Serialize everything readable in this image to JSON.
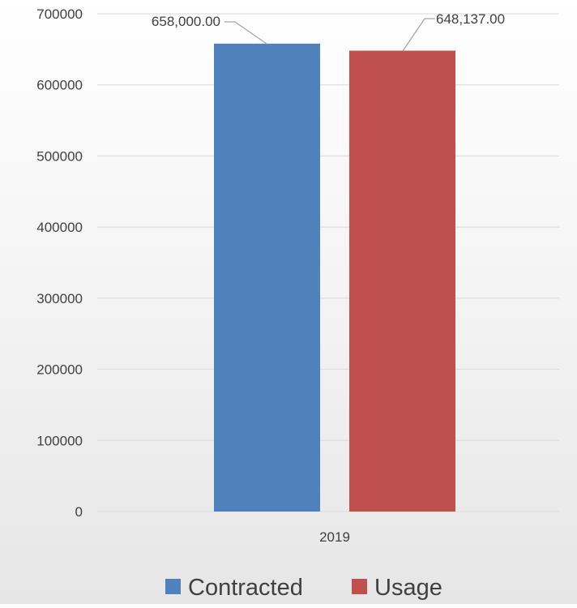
{
  "chart_data": {
    "type": "bar",
    "categories": [
      "2019"
    ],
    "series": [
      {
        "name": "Contracted",
        "values": [
          658000
        ],
        "color": "#4f81bd",
        "data_label": "658,000.00"
      },
      {
        "name": "Usage",
        "values": [
          648137
        ],
        "color": "#c0504d",
        "data_label": "648,137.00"
      }
    ],
    "ylim": [
      0,
      700000
    ],
    "yticks": [
      "0",
      "100000",
      "200000",
      "300000",
      "400000",
      "500000",
      "600000",
      "700000"
    ],
    "title": "",
    "xlabel": "",
    "ylabel": "",
    "grid": true,
    "legend_position": "bottom",
    "gridline_color": "#d9d9d9",
    "label_color": "#404040",
    "leader_color": "#a6a6a6"
  }
}
